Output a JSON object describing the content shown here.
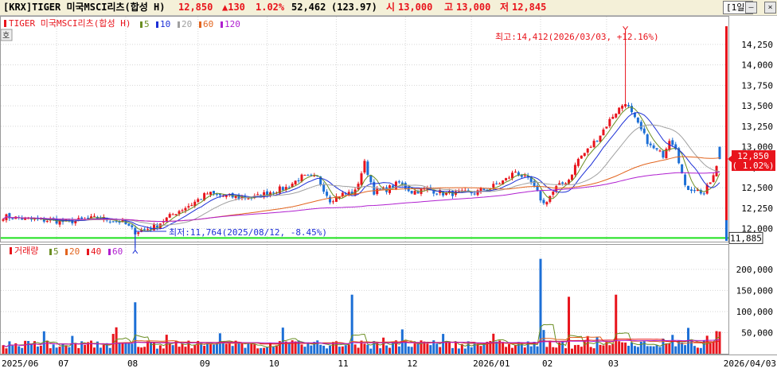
{
  "header": {
    "title": "[KRX]TIGER 미국MSCI리츠(합성 H)",
    "price": "12,850",
    "change": "▲130",
    "change_pct": "1.02%",
    "volume": "52,462",
    "volume_ratio": "(123.97)",
    "open_label": "시",
    "open": "13,000",
    "high_label": "고",
    "high": "13,000",
    "low_label": "저",
    "low": "12,845",
    "period": "[1일]",
    "min_icon": "minimize-icon",
    "restore_icon": "restore-icon",
    "close_icon": "close-icon"
  },
  "price_panel": {
    "legend_name": "TIGER 미국MSCI리츠(합성 H)",
    "side_tab": "호",
    "ma_legend": [
      {
        "label": "5",
        "color": "#6b8e23"
      },
      {
        "label": "10",
        "color": "#1c2fd6"
      },
      {
        "label": "20",
        "color": "#a0a0a0"
      },
      {
        "label": "60",
        "color": "#e2641e"
      },
      {
        "label": "120",
        "color": "#b01fd0"
      }
    ],
    "high_annotation": "최고:14,412(2026/03/03, +12.16%)",
    "low_annotation": "최저:11,764(2025/08/12, -8.45%)",
    "current_price_tag": "12,850",
    "current_pct_tag": "( 1.02%)",
    "support_line_tag": "11,885"
  },
  "volume_panel": {
    "legend_name": "거래량",
    "ma_legend": [
      {
        "label": "5",
        "color": "#6b8e23"
      },
      {
        "label": "20",
        "color": "#e2641e"
      },
      {
        "label": "40",
        "color": "#e8141c"
      },
      {
        "label": "60",
        "color": "#b01fd0"
      }
    ]
  },
  "x_axis": {
    "labels": [
      "2025/06",
      "07",
      "08",
      "09",
      "10",
      "11",
      "12",
      "2026/01",
      "02",
      "03",
      "2026/04/03"
    ]
  },
  "chart_data": [
    {
      "type": "candlestick",
      "title": "TIGER 미국MSCI리츠(합성 H)",
      "ylim": [
        11850,
        14550
      ],
      "yticks": [
        12000,
        12250,
        12500,
        12750,
        13000,
        13250,
        13500,
        13750,
        14000,
        14250
      ],
      "ytick_labels": [
        "12,000",
        "12,250",
        "12,500",
        "12,750",
        "13,000",
        "13,250",
        "13,500",
        "13,750",
        "14,000",
        "14,250"
      ],
      "x_range": [
        "2025/06",
        "2026/04/03"
      ],
      "highest": {
        "value": 14412,
        "date": "2026/03/03",
        "pct": 12.16
      },
      "lowest": {
        "value": 11764,
        "date": "2025/08/12",
        "pct": -8.45
      },
      "last_close": 12850,
      "support_line": 11885,
      "up_color": "#e8141c",
      "down_color": "#1c6fd6",
      "close_anchors": [
        [
          0,
          12150
        ],
        [
          8,
          12110
        ],
        [
          15,
          12100
        ],
        [
          20,
          12080
        ],
        [
          30,
          12130
        ],
        [
          38,
          12080
        ],
        [
          42,
          11960
        ],
        [
          48,
          12020
        ],
        [
          55,
          12200
        ],
        [
          60,
          12300
        ],
        [
          65,
          12430
        ],
        [
          70,
          12400
        ],
        [
          75,
          12380
        ],
        [
          80,
          12380
        ],
        [
          85,
          12450
        ],
        [
          90,
          12500
        ],
        [
          95,
          12630
        ],
        [
          100,
          12620
        ],
        [
          104,
          12350
        ],
        [
          108,
          12420
        ],
        [
          112,
          12450
        ],
        [
          115,
          12800
        ],
        [
          118,
          12450
        ],
        [
          122,
          12480
        ],
        [
          126,
          12560
        ],
        [
          130,
          12450
        ],
        [
          135,
          12480
        ],
        [
          140,
          12430
        ],
        [
          145,
          12430
        ],
        [
          150,
          12440
        ],
        [
          155,
          12500
        ],
        [
          160,
          12600
        ],
        [
          163,
          12700
        ],
        [
          168,
          12560
        ],
        [
          172,
          12300
        ],
        [
          176,
          12500
        ],
        [
          180,
          12600
        ],
        [
          183,
          12850
        ],
        [
          186,
          12960
        ],
        [
          190,
          13150
        ],
        [
          194,
          13380
        ],
        [
          198,
          13550
        ],
        [
          200,
          13400
        ],
        [
          203,
          13200
        ],
        [
          206,
          13000
        ],
        [
          210,
          12900
        ],
        [
          212,
          13100
        ],
        [
          214,
          13000
        ],
        [
          217,
          12500
        ],
        [
          220,
          12480
        ],
        [
          223,
          12430
        ],
        [
          226,
          12640
        ],
        [
          228,
          12850
        ]
      ]
    },
    {
      "type": "bar",
      "title": "거래량",
      "ylim": [
        0,
        245000
      ],
      "yticks": [
        50000,
        100000,
        150000,
        200000
      ],
      "ytick_labels": [
        "50,000",
        "100,000",
        "150,000",
        "200,000"
      ],
      "last_volume": 52462,
      "notable_bars": [
        {
          "date": "2025/08",
          "value": 122000
        },
        {
          "date": "2025/11",
          "value": 140000
        },
        {
          "date": "2026/02",
          "value": 225000
        },
        {
          "date": "2026/02",
          "value": 135000
        },
        {
          "date": "2026/03",
          "value": 140000
        },
        {
          "date": "2026/04/03",
          "value": 52462
        }
      ]
    }
  ]
}
